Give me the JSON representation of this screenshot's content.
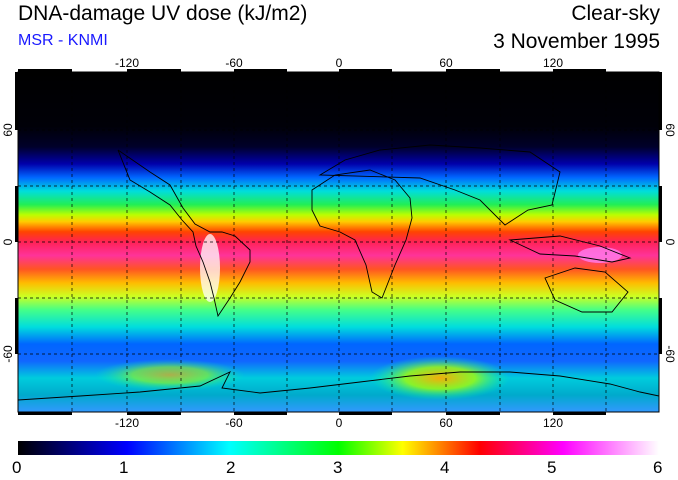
{
  "header": {
    "title": "DNA-damage UV dose (kJ/m2)",
    "subtitle": "MSR - KNMI",
    "condition": "Clear-sky",
    "date": "3 November 1995"
  },
  "map": {
    "lon_ticks": [
      "-120",
      "-60",
      "0",
      "60",
      "120"
    ],
    "lat_ticks": [
      "60",
      "0",
      "-60"
    ],
    "lon_range": [
      -180,
      180
    ],
    "lat_range": [
      -90,
      90
    ]
  },
  "colorbar": {
    "labels": [
      "0",
      "1",
      "2",
      "3",
      "4",
      "5",
      "6"
    ],
    "range": [
      0,
      6
    ],
    "colors": [
      "#000000",
      "#0000ff",
      "#00ffff",
      "#00ff00",
      "#ffff00",
      "#ff0000",
      "#ff00ff",
      "#ffffff"
    ]
  }
}
